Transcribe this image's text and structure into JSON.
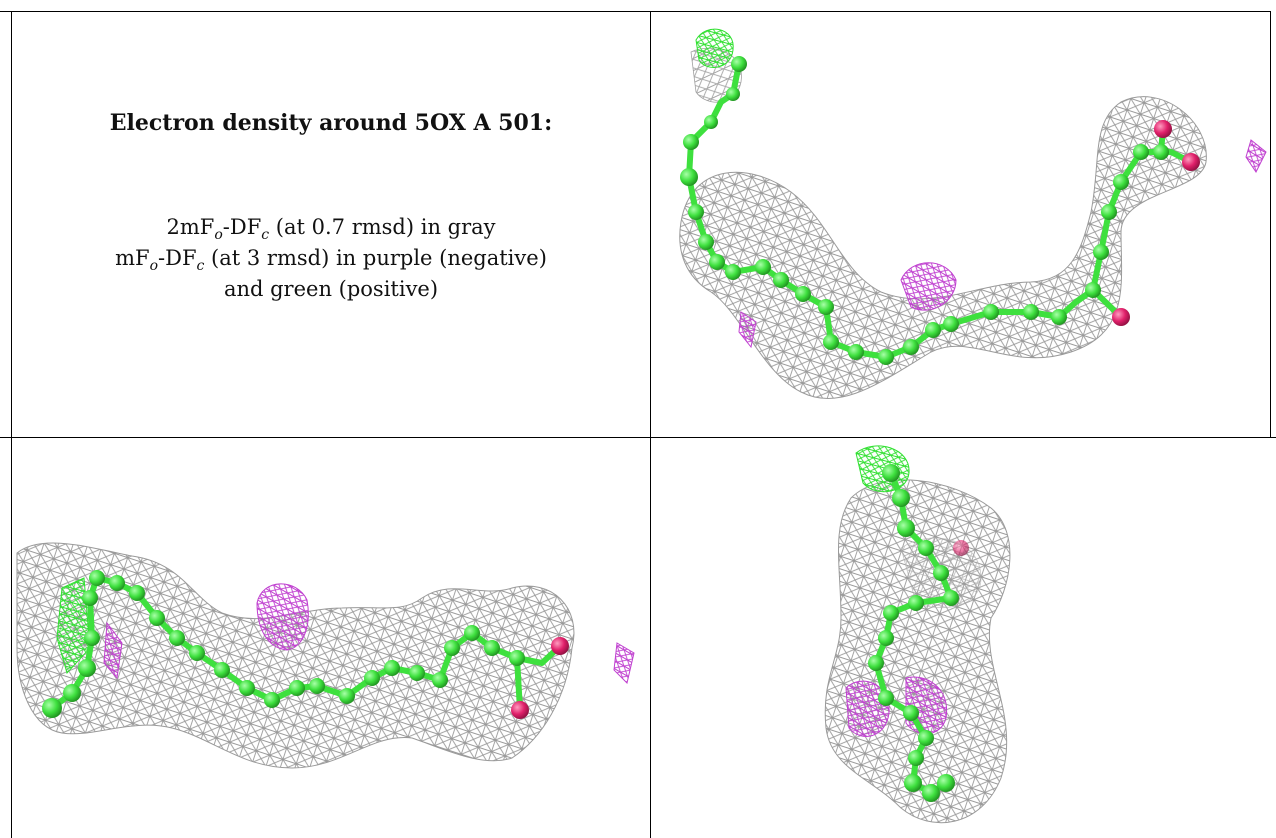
{
  "caption": {
    "title": "Electron density around 5OX A 501:",
    "line1": {
      "prefix": "2mF",
      "sub1": "o",
      "mid": "-DF",
      "sub2": "c",
      "suffix": " (at 0.7 rmsd) in gray"
    },
    "line2": {
      "prefix": "mF",
      "sub1": "o",
      "mid": "-DF",
      "sub2": "c",
      "suffix": " (at 3 rmsd) in purple (negative)"
    },
    "line3": "and green (positive)"
  },
  "views": [
    {
      "name": "top-right-view",
      "orientation": "bent chain, carboxylate at right end"
    },
    {
      "name": "bottom-left-view",
      "orientation": "horizontal chain, carboxylate at right"
    },
    {
      "name": "bottom-right-view",
      "orientation": "vertical chain, end-on"
    }
  ],
  "colors": {
    "mesh_2fofc": "#9a9a9a",
    "mesh_negative": "#c040d0",
    "mesh_positive": "#30e030",
    "carbon": "#3ee03e",
    "oxygen": "#e0206a",
    "border": "#000000"
  }
}
